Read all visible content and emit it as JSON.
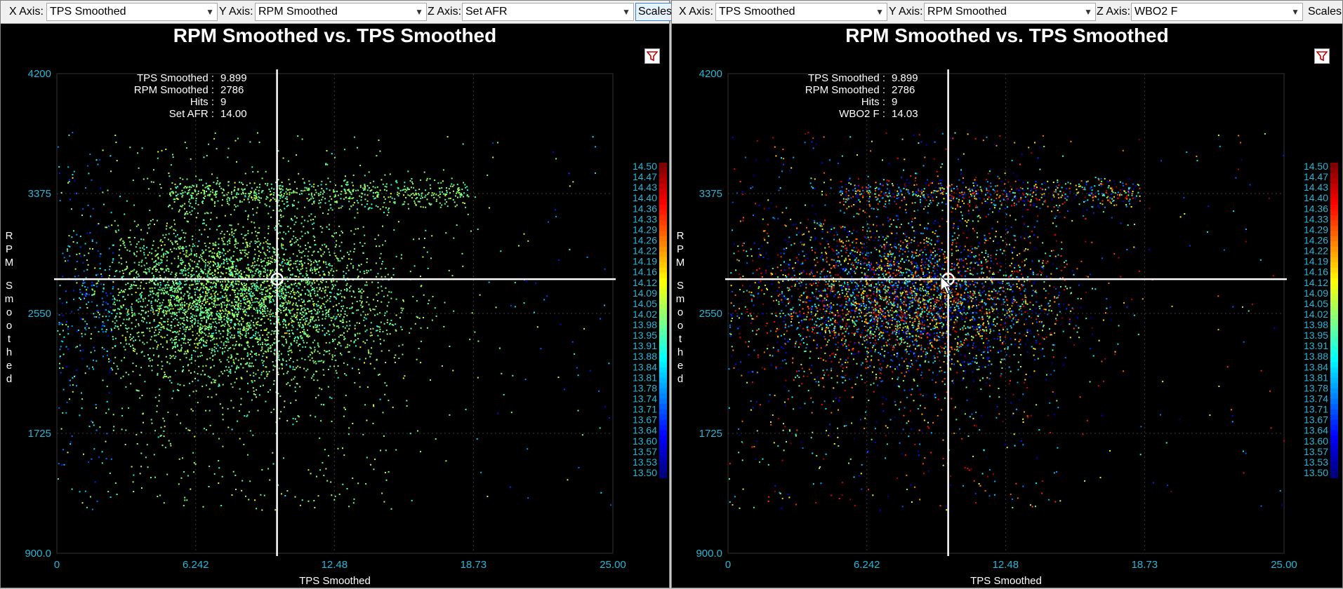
{
  "colors": {
    "background": "#000000",
    "tick_text": "#29b6d6",
    "title_text": "#ffffff",
    "grid": "#3a3a3a",
    "crosshair": "#ffffff"
  },
  "panels": [
    {
      "toolbar": {
        "x_label": "X Axis:",
        "x_value": "TPS Smoothed",
        "y_label": "Y Axis:",
        "y_value": "RPM Smoothed",
        "z_label": "Z Axis:",
        "z_value": "Set AFR",
        "scales_label": "Scales"
      },
      "filter_icon": "filter-icon",
      "readout": {
        "labels": [
          "TPS Smoothed :",
          "RPM Smoothed :",
          "Hits :",
          "Set AFR :"
        ],
        "values": [
          "9.899",
          "2786",
          "9",
          "14.00"
        ]
      },
      "z_mode": "set"
    },
    {
      "toolbar": {
        "x_label": "X Axis:",
        "x_value": "TPS Smoothed",
        "y_label": "Y Axis:",
        "y_value": "RPM Smoothed",
        "z_label": "Z Axis:",
        "z_value": "WBO2 F",
        "scales_label": "Scales"
      },
      "filter_icon": "filter-icon",
      "readout": {
        "labels": [
          "TPS Smoothed :",
          "RPM Smoothed :",
          "Hits :",
          "WBO2 F :"
        ],
        "values": [
          "9.899",
          "2786",
          "9",
          "14.03"
        ]
      },
      "z_mode": "wbo2"
    }
  ],
  "chart_data": [
    {
      "type": "scatter",
      "title": "RPM Smoothed vs. TPS Smoothed",
      "xlabel": "TPS Smoothed",
      "ylabel": "RPM Smoothed",
      "zlabel": "Set AFR",
      "xlim": [
        0,
        25.0
      ],
      "ylim": [
        900.0,
        4200
      ],
      "xticks": [
        "0",
        "6.242",
        "12.48",
        "18.73",
        "25.00"
      ],
      "xtick_values": [
        0,
        6.242,
        12.48,
        18.73,
        25.0
      ],
      "yticks": [
        "4200",
        "3375",
        "2550",
        "1725",
        "900.0"
      ],
      "ytick_values": [
        4200,
        3375,
        2550,
        1725,
        900
      ],
      "grid": true,
      "colorbar": {
        "range": [
          13.5,
          14.5
        ],
        "labels": [
          "14.50",
          "14.47",
          "14.43",
          "14.40",
          "14.36",
          "14.33",
          "14.29",
          "14.26",
          "14.22",
          "14.19",
          "14.16",
          "14.12",
          "14.09",
          "14.05",
          "14.02",
          "13.98",
          "13.95",
          "13.91",
          "13.88",
          "13.84",
          "13.81",
          "13.78",
          "13.74",
          "13.71",
          "13.67",
          "13.64",
          "13.60",
          "13.57",
          "13.53",
          "13.50"
        ]
      },
      "cursor": {
        "x": 9.899,
        "y": 2786
      },
      "point_distribution": {
        "count": 5500,
        "main_cluster": {
          "x_mean": 8.0,
          "x_sd": 3.4,
          "y_mean": 2650,
          "y_sd": 270
        },
        "upper_band": {
          "x_range": [
            5,
            18.5
          ],
          "y_mean": 3375,
          "y_sd": 50
        },
        "sparse_fill": {
          "x_range": [
            0,
            25
          ],
          "y_range": [
            1200,
            3800
          ]
        },
        "set_afr_typical": 14.0
      }
    },
    {
      "type": "scatter",
      "title": "RPM Smoothed vs. TPS Smoothed",
      "xlabel": "TPS Smoothed",
      "ylabel": "RPM Smoothed",
      "zlabel": "WBO2 F",
      "xlim": [
        0,
        25.0
      ],
      "ylim": [
        900.0,
        4200
      ],
      "xticks": [
        "0",
        "6.242",
        "12.48",
        "18.73",
        "25.00"
      ],
      "xtick_values": [
        0,
        6.242,
        12.48,
        18.73,
        25.0
      ],
      "yticks": [
        "4200",
        "3375",
        "2550",
        "1725",
        "900.0"
      ],
      "ytick_values": [
        4200,
        3375,
        2550,
        1725,
        900
      ],
      "grid": true,
      "colorbar": {
        "range": [
          13.5,
          14.5
        ],
        "labels": [
          "14.50",
          "14.47",
          "14.43",
          "14.40",
          "14.36",
          "14.33",
          "14.29",
          "14.26",
          "14.22",
          "14.19",
          "14.16",
          "14.12",
          "14.09",
          "14.05",
          "14.02",
          "13.98",
          "13.95",
          "13.91",
          "13.88",
          "13.84",
          "13.81",
          "13.78",
          "13.74",
          "13.71",
          "13.67",
          "13.64",
          "13.60",
          "13.57",
          "13.53",
          "13.50"
        ]
      },
      "cursor": {
        "x": 9.899,
        "y": 2786
      },
      "point_distribution": {
        "count": 5500,
        "main_cluster": {
          "x_mean": 8.0,
          "x_sd": 3.4,
          "y_mean": 2650,
          "y_sd": 270
        },
        "upper_band": {
          "x_range": [
            5,
            18.5
          ],
          "y_mean": 3375,
          "y_sd": 50
        },
        "sparse_fill": {
          "x_range": [
            0,
            25
          ],
          "y_range": [
            1200,
            3800
          ]
        },
        "wbo2_spread": [
          13.5,
          14.5
        ]
      }
    }
  ]
}
